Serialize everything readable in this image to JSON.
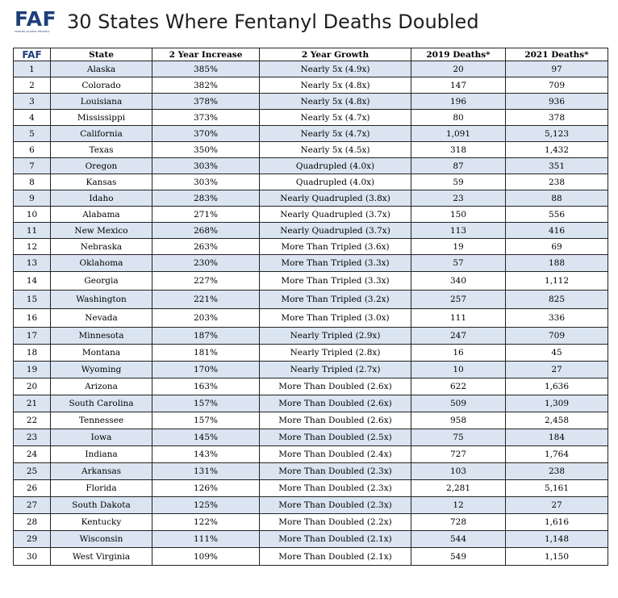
{
  "header": {
    "logo_text": "FAF",
    "logo_subtext": "FAMILIES AGAINST FENTANYL",
    "title": "30 States Where Fentanyl Deaths Doubled"
  },
  "table": {
    "columns": [
      "FAF",
      "State",
      "2 Year Increase",
      "2 Year Growth",
      "2019 Deaths*",
      "2021 Deaths*"
    ],
    "rows": [
      [
        "1",
        "Alaska",
        "385%",
        "Nearly 5x (4.9x)",
        "20",
        "97"
      ],
      [
        "2",
        "Colorado",
        "382%",
        "Nearly 5x (4.8x)",
        "147",
        "709"
      ],
      [
        "3",
        "Louisiana",
        "378%",
        "Nearly 5x (4.8x)",
        "196",
        "936"
      ],
      [
        "4",
        "Mississippi",
        "373%",
        "Nearly 5x (4.7x)",
        "80",
        "378"
      ],
      [
        "5",
        "California",
        "370%",
        "Nearly 5x (4.7x)",
        "1,091",
        "5,123"
      ],
      [
        "6",
        "Texas",
        "350%",
        "Nearly 5x (4.5x)",
        "318",
        "1,432"
      ],
      [
        "7",
        "Oregon",
        "303%",
        "Quadrupled (4.0x)",
        "87",
        "351"
      ],
      [
        "8",
        "Kansas",
        "303%",
        "Quadrupled (4.0x)",
        "59",
        "238"
      ],
      [
        "9",
        "Idaho",
        "283%",
        "Nearly Quadrupled (3.8x)",
        "23",
        "88"
      ],
      [
        "10",
        "Alabama",
        "271%",
        "Nearly Quadrupled (3.7x)",
        "150",
        "556"
      ],
      [
        "11",
        "New Mexico",
        "268%",
        "Nearly Quadrupled (3.7x)",
        "113",
        "416"
      ],
      [
        "12",
        "Nebraska",
        "263%",
        "More Than Tripled (3.6x)",
        "19",
        "69"
      ],
      [
        "13",
        "Oklahoma",
        "230%",
        "More Than Tripled (3.3x)",
        "57",
        "188"
      ],
      [
        "14",
        "Georgia",
        "227%",
        "More Than Tripled (3.3x)",
        "340",
        "1,112"
      ],
      [
        "15",
        "Washington",
        "221%",
        "More Than Tripled (3.2x)",
        "257",
        "825"
      ],
      [
        "16",
        "Nevada",
        "203%",
        "More Than Tripled (3.0x)",
        "111",
        "336"
      ],
      [
        "17",
        "Minnesota",
        "187%",
        "Nearly Tripled (2.9x)",
        "247",
        "709"
      ],
      [
        "18",
        "Montana",
        "181%",
        "Nearly Tripled (2.8x)",
        "16",
        "45"
      ],
      [
        "19",
        "Wyoming",
        "170%",
        "Nearly Tripled (2.7x)",
        "10",
        "27"
      ],
      [
        "20",
        "Arizona",
        "163%",
        "More Than Doubled (2.6x)",
        "622",
        "1,636"
      ],
      [
        "21",
        "South Carolina",
        "157%",
        "More Than Doubled (2.6x)",
        "509",
        "1,309"
      ],
      [
        "22",
        "Tennessee",
        "157%",
        "More Than Doubled (2.6x)",
        "958",
        "2,458"
      ],
      [
        "23",
        "Iowa",
        "145%",
        "More Than Doubled (2.5x)",
        "75",
        "184"
      ],
      [
        "24",
        "Indiana",
        "143%",
        "More Than Doubled (2.4x)",
        "727",
        "1,764"
      ],
      [
        "25",
        "Arkansas",
        "131%",
        "More Than Doubled (2.3x)",
        "103",
        "238"
      ],
      [
        "26",
        "Florida",
        "126%",
        "More Than Doubled (2.3x)",
        "2,281",
        "5,161"
      ],
      [
        "27",
        "South Dakota",
        "125%",
        "More Than Doubled (2.3x)",
        "12",
        "27"
      ],
      [
        "28",
        "Kentucky",
        "122%",
        "More Than Doubled (2.2x)",
        "728",
        "1,616"
      ],
      [
        "29",
        "Wisconsin",
        "111%",
        "More Than Doubled (2.1x)",
        "544",
        "1,148"
      ],
      [
        "30",
        "West Virginia",
        "109%",
        "More Than Doubled (2.1x)",
        "549",
        "1,150"
      ]
    ]
  },
  "colors": {
    "brand": "#1f3f7a",
    "row_shade": "#dbe5f1",
    "border": "#222222"
  }
}
